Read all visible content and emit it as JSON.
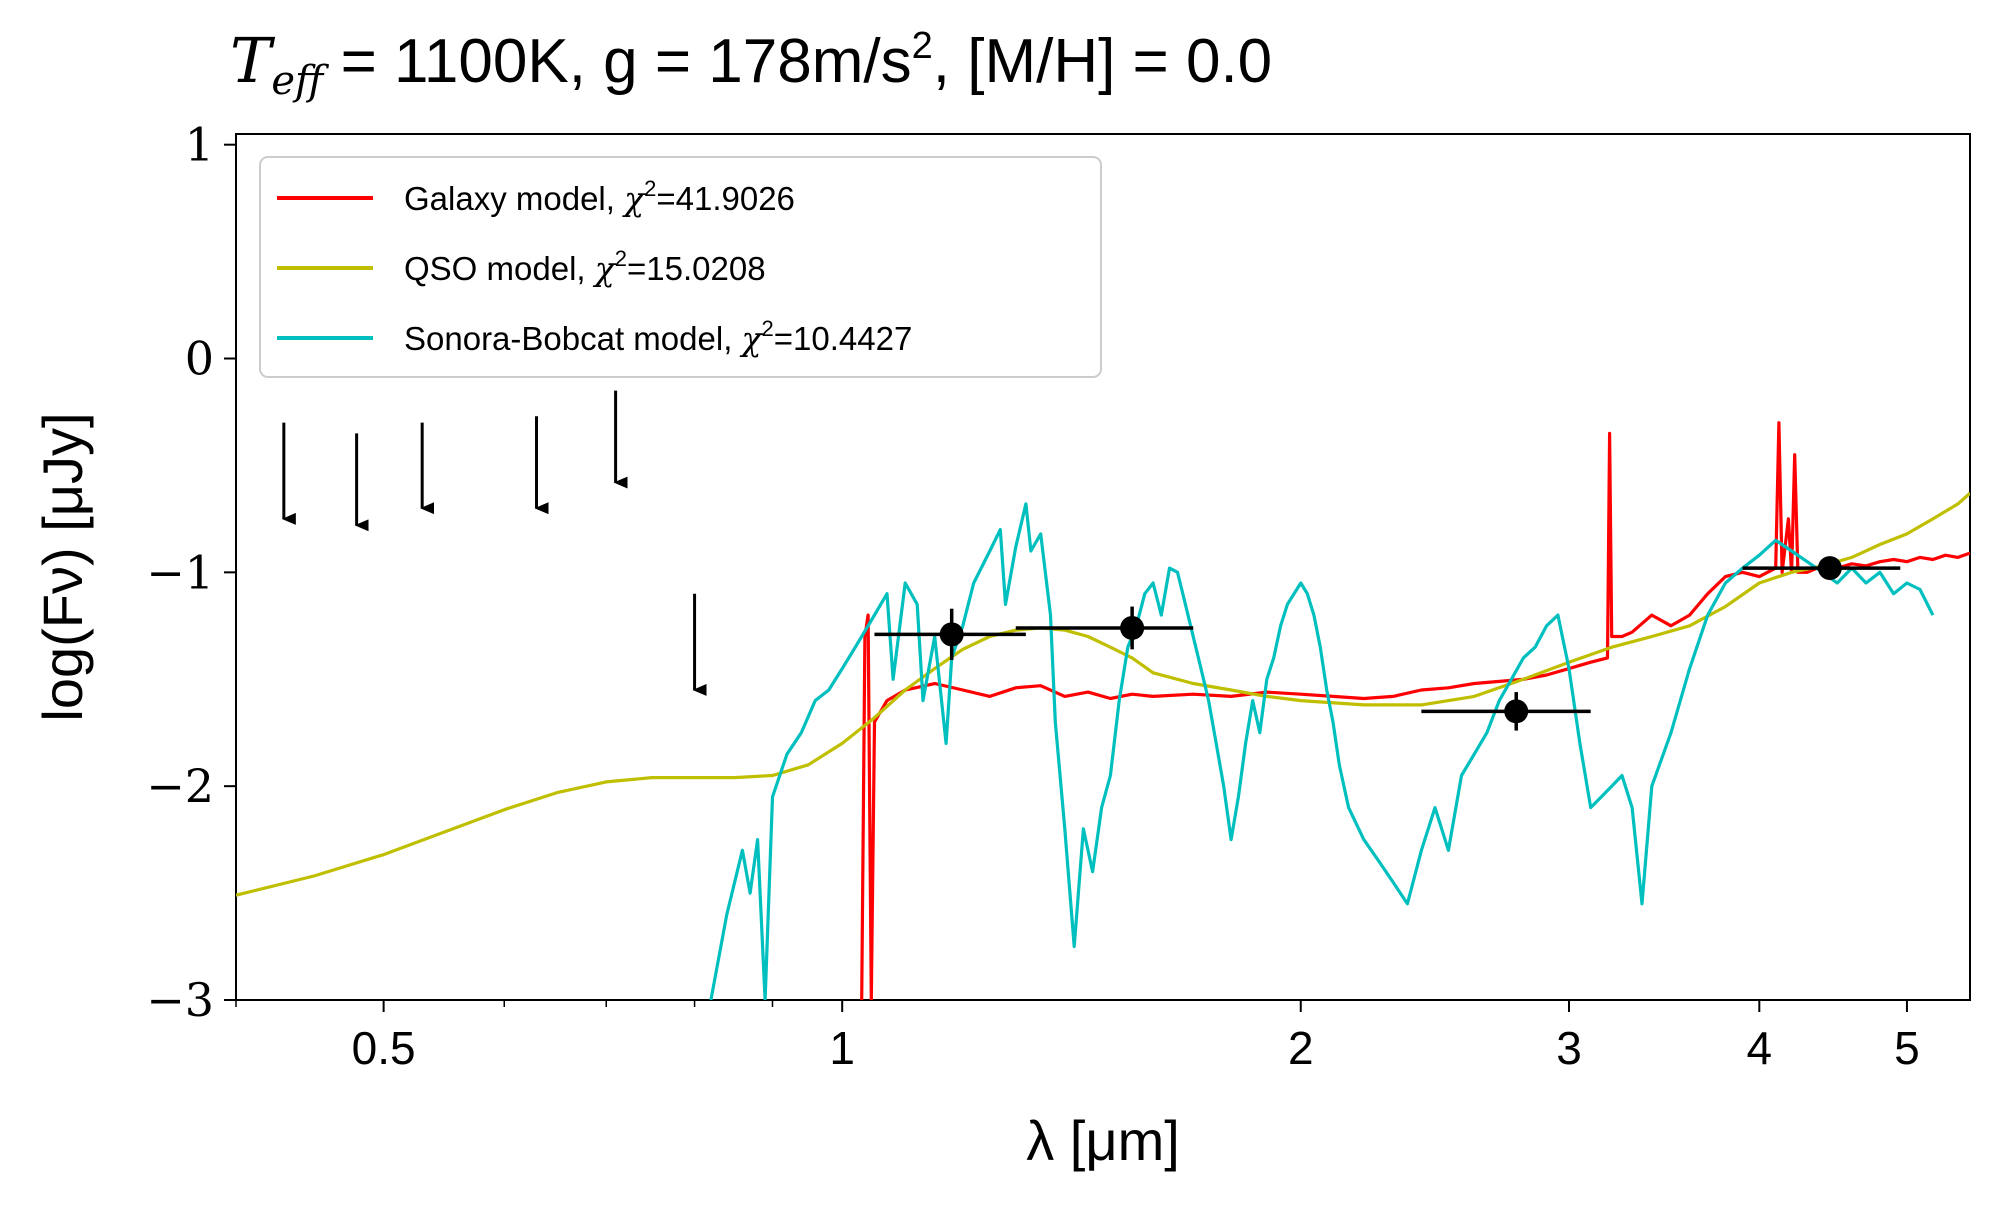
{
  "chart_data": {
    "type": "line",
    "title": "T_eff = 1100K, g = 178m/s², [M/H] = 0.0",
    "title_parts": {
      "teff_symbol": "T",
      "teff_sub": "eff",
      "rest": " = 1100K, g = 178m/s",
      "sup": "2",
      "tail": ", [M/H] = 0.0"
    },
    "xlabel": "λ [μm]",
    "ylabel": "log(Fν) [μJy]",
    "xscale": "log",
    "xlim": [
      0.4,
      5.5
    ],
    "ylim": [
      -3,
      1.05
    ],
    "xticks": [
      {
        "value": 0.5,
        "label": "0.5"
      },
      {
        "value": 1,
        "label": "1"
      },
      {
        "value": 2,
        "label": "2"
      },
      {
        "value": 3,
        "label": "3"
      },
      {
        "value": 4,
        "label": "4"
      },
      {
        "value": 5,
        "label": "5"
      }
    ],
    "xminor": [
      0.4,
      0.6,
      0.7,
      0.8,
      0.9
    ],
    "yticks": [
      {
        "value": 1,
        "label": "1"
      },
      {
        "value": 0,
        "label": "0"
      },
      {
        "value": -1,
        "label": "−1"
      },
      {
        "value": -2,
        "label": "−2"
      },
      {
        "value": -3,
        "label": "−3"
      }
    ],
    "grid": false,
    "legend_position": "top-left",
    "series": [
      {
        "name": "Galaxy model, χ²=41.9026",
        "legend_prefix": "Galaxy model, ",
        "legend_chi": "χ",
        "legend_sup": "2",
        "legend_value": "=41.9026",
        "color": "#ff0000",
        "points": [
          [
            1.03,
            -3.0
          ],
          [
            1.035,
            -1.3
          ],
          [
            1.04,
            -1.2
          ],
          [
            1.045,
            -3.0
          ],
          [
            1.05,
            -1.7
          ],
          [
            1.07,
            -1.6
          ],
          [
            1.1,
            -1.55
          ],
          [
            1.15,
            -1.52
          ],
          [
            1.2,
            -1.55
          ],
          [
            1.25,
            -1.58
          ],
          [
            1.3,
            -1.54
          ],
          [
            1.35,
            -1.53
          ],
          [
            1.4,
            -1.58
          ],
          [
            1.45,
            -1.56
          ],
          [
            1.5,
            -1.59
          ],
          [
            1.55,
            -1.57
          ],
          [
            1.6,
            -1.58
          ],
          [
            1.7,
            -1.57
          ],
          [
            1.8,
            -1.58
          ],
          [
            1.9,
            -1.56
          ],
          [
            2.0,
            -1.57
          ],
          [
            2.1,
            -1.58
          ],
          [
            2.2,
            -1.59
          ],
          [
            2.3,
            -1.58
          ],
          [
            2.4,
            -1.55
          ],
          [
            2.5,
            -1.54
          ],
          [
            2.6,
            -1.52
          ],
          [
            2.7,
            -1.51
          ],
          [
            2.8,
            -1.5
          ],
          [
            2.9,
            -1.48
          ],
          [
            3.0,
            -1.45
          ],
          [
            3.1,
            -1.42
          ],
          [
            3.18,
            -1.4
          ],
          [
            3.19,
            -0.35
          ],
          [
            3.2,
            -1.3
          ],
          [
            3.25,
            -1.3
          ],
          [
            3.3,
            -1.28
          ],
          [
            3.4,
            -1.2
          ],
          [
            3.5,
            -1.25
          ],
          [
            3.6,
            -1.2
          ],
          [
            3.7,
            -1.1
          ],
          [
            3.8,
            -1.02
          ],
          [
            3.9,
            -1.0
          ],
          [
            4.0,
            -1.02
          ],
          [
            4.05,
            -1.0
          ],
          [
            4.1,
            -0.98
          ],
          [
            4.12,
            -0.3
          ],
          [
            4.14,
            -1.0
          ],
          [
            4.18,
            -0.75
          ],
          [
            4.2,
            -1.0
          ],
          [
            4.22,
            -0.45
          ],
          [
            4.24,
            -1.0
          ],
          [
            4.3,
            -1.0
          ],
          [
            4.4,
            -0.97
          ],
          [
            4.5,
            -0.98
          ],
          [
            4.6,
            -0.96
          ],
          [
            4.7,
            -0.97
          ],
          [
            4.8,
            -0.95
          ],
          [
            4.9,
            -0.94
          ],
          [
            5.0,
            -0.95
          ],
          [
            5.1,
            -0.93
          ],
          [
            5.2,
            -0.94
          ],
          [
            5.3,
            -0.92
          ],
          [
            5.4,
            -0.93
          ],
          [
            5.5,
            -0.91
          ]
        ]
      },
      {
        "name": "QSO model, χ²=15.0208",
        "legend_prefix": "QSO model, ",
        "legend_chi": "χ",
        "legend_sup": "2",
        "legend_value": "=15.0208",
        "color": "#bfbf00",
        "points": [
          [
            0.4,
            -2.51
          ],
          [
            0.45,
            -2.42
          ],
          [
            0.5,
            -2.32
          ],
          [
            0.55,
            -2.21
          ],
          [
            0.6,
            -2.11
          ],
          [
            0.65,
            -2.03
          ],
          [
            0.7,
            -1.98
          ],
          [
            0.75,
            -1.96
          ],
          [
            0.8,
            -1.96
          ],
          [
            0.85,
            -1.96
          ],
          [
            0.9,
            -1.95
          ],
          [
            0.95,
            -1.9
          ],
          [
            1.0,
            -1.8
          ],
          [
            1.05,
            -1.68
          ],
          [
            1.1,
            -1.55
          ],
          [
            1.15,
            -1.45
          ],
          [
            1.2,
            -1.36
          ],
          [
            1.25,
            -1.3
          ],
          [
            1.3,
            -1.27
          ],
          [
            1.35,
            -1.26
          ],
          [
            1.4,
            -1.27
          ],
          [
            1.45,
            -1.3
          ],
          [
            1.5,
            -1.35
          ],
          [
            1.55,
            -1.4
          ],
          [
            1.6,
            -1.47
          ],
          [
            1.7,
            -1.52
          ],
          [
            1.8,
            -1.55
          ],
          [
            1.9,
            -1.58
          ],
          [
            2.0,
            -1.6
          ],
          [
            2.2,
            -1.62
          ],
          [
            2.4,
            -1.62
          ],
          [
            2.6,
            -1.58
          ],
          [
            2.8,
            -1.5
          ],
          [
            3.0,
            -1.42
          ],
          [
            3.2,
            -1.35
          ],
          [
            3.4,
            -1.3
          ],
          [
            3.6,
            -1.25
          ],
          [
            3.8,
            -1.16
          ],
          [
            4.0,
            -1.05
          ],
          [
            4.2,
            -1.0
          ],
          [
            4.4,
            -0.97
          ],
          [
            4.6,
            -0.93
          ],
          [
            4.8,
            -0.87
          ],
          [
            5.0,
            -0.82
          ],
          [
            5.2,
            -0.75
          ],
          [
            5.4,
            -0.68
          ],
          [
            5.5,
            -0.63
          ]
        ]
      },
      {
        "name": "Sonora-Bobcat model, χ²=10.4427",
        "legend_prefix": "Sonora-Bobcat model, ",
        "legend_chi": "χ",
        "legend_sup": "2",
        "legend_value": "=10.4427",
        "color": "#00bfbf",
        "points": [
          [
            0.82,
            -3.0
          ],
          [
            0.84,
            -2.6
          ],
          [
            0.86,
            -2.3
          ],
          [
            0.87,
            -2.5
          ],
          [
            0.88,
            -2.25
          ],
          [
            0.89,
            -3.0
          ],
          [
            0.9,
            -2.05
          ],
          [
            0.92,
            -1.85
          ],
          [
            0.94,
            -1.75
          ],
          [
            0.96,
            -1.6
          ],
          [
            0.98,
            -1.55
          ],
          [
            1.0,
            -1.45
          ],
          [
            1.02,
            -1.35
          ],
          [
            1.05,
            -1.2
          ],
          [
            1.07,
            -1.1
          ],
          [
            1.08,
            -1.5
          ],
          [
            1.1,
            -1.05
          ],
          [
            1.12,
            -1.15
          ],
          [
            1.13,
            -1.6
          ],
          [
            1.15,
            -1.3
          ],
          [
            1.17,
            -1.8
          ],
          [
            1.18,
            -1.4
          ],
          [
            1.2,
            -1.25
          ],
          [
            1.22,
            -1.05
          ],
          [
            1.25,
            -0.9
          ],
          [
            1.27,
            -0.8
          ],
          [
            1.28,
            -1.15
          ],
          [
            1.3,
            -0.88
          ],
          [
            1.32,
            -0.68
          ],
          [
            1.33,
            -0.9
          ],
          [
            1.35,
            -0.82
          ],
          [
            1.37,
            -1.2
          ],
          [
            1.38,
            -1.7
          ],
          [
            1.4,
            -2.2
          ],
          [
            1.42,
            -2.75
          ],
          [
            1.44,
            -2.2
          ],
          [
            1.46,
            -2.4
          ],
          [
            1.48,
            -2.1
          ],
          [
            1.5,
            -1.95
          ],
          [
            1.52,
            -1.6
          ],
          [
            1.54,
            -1.35
          ],
          [
            1.56,
            -1.25
          ],
          [
            1.58,
            -1.1
          ],
          [
            1.6,
            -1.05
          ],
          [
            1.62,
            -1.2
          ],
          [
            1.64,
            -0.98
          ],
          [
            1.66,
            -1.0
          ],
          [
            1.68,
            -1.15
          ],
          [
            1.7,
            -1.3
          ],
          [
            1.72,
            -1.45
          ],
          [
            1.74,
            -1.6
          ],
          [
            1.76,
            -1.8
          ],
          [
            1.78,
            -2.0
          ],
          [
            1.8,
            -2.25
          ],
          [
            1.82,
            -2.05
          ],
          [
            1.84,
            -1.8
          ],
          [
            1.86,
            -1.6
          ],
          [
            1.88,
            -1.75
          ],
          [
            1.9,
            -1.5
          ],
          [
            1.92,
            -1.4
          ],
          [
            1.94,
            -1.25
          ],
          [
            1.96,
            -1.15
          ],
          [
            1.98,
            -1.1
          ],
          [
            2.0,
            -1.05
          ],
          [
            2.02,
            -1.1
          ],
          [
            2.04,
            -1.2
          ],
          [
            2.06,
            -1.35
          ],
          [
            2.08,
            -1.55
          ],
          [
            2.1,
            -1.7
          ],
          [
            2.12,
            -1.9
          ],
          [
            2.15,
            -2.1
          ],
          [
            2.2,
            -2.25
          ],
          [
            2.25,
            -2.35
          ],
          [
            2.3,
            -2.45
          ],
          [
            2.35,
            -2.55
          ],
          [
            2.4,
            -2.3
          ],
          [
            2.45,
            -2.1
          ],
          [
            2.5,
            -2.3
          ],
          [
            2.55,
            -1.95
          ],
          [
            2.6,
            -1.85
          ],
          [
            2.65,
            -1.75
          ],
          [
            2.7,
            -1.6
          ],
          [
            2.75,
            -1.5
          ],
          [
            2.8,
            -1.4
          ],
          [
            2.85,
            -1.35
          ],
          [
            2.9,
            -1.25
          ],
          [
            2.95,
            -1.2
          ],
          [
            3.0,
            -1.45
          ],
          [
            3.05,
            -1.8
          ],
          [
            3.1,
            -2.1
          ],
          [
            3.15,
            -2.05
          ],
          [
            3.2,
            -2.0
          ],
          [
            3.25,
            -1.95
          ],
          [
            3.3,
            -2.1
          ],
          [
            3.35,
            -2.55
          ],
          [
            3.4,
            -2.0
          ],
          [
            3.5,
            -1.75
          ],
          [
            3.6,
            -1.45
          ],
          [
            3.7,
            -1.2
          ],
          [
            3.8,
            -1.05
          ],
          [
            3.9,
            -0.98
          ],
          [
            4.0,
            -0.92
          ],
          [
            4.1,
            -0.85
          ],
          [
            4.2,
            -0.9
          ],
          [
            4.3,
            -0.95
          ],
          [
            4.4,
            -1.0
          ],
          [
            4.5,
            -1.05
          ],
          [
            4.6,
            -0.98
          ],
          [
            4.7,
            -1.05
          ],
          [
            4.8,
            -1.0
          ],
          [
            4.9,
            -1.1
          ],
          [
            5.0,
            -1.05
          ],
          [
            5.1,
            -1.08
          ],
          [
            5.2,
            -1.2
          ]
        ]
      }
    ],
    "observations": [
      {
        "x": 1.18,
        "y": -1.29,
        "xlo": 1.05,
        "xhi": 1.32,
        "yerr": 0.12
      },
      {
        "x": 1.55,
        "y": -1.26,
        "xlo": 1.3,
        "xhi": 1.7,
        "yerr": 0.1
      },
      {
        "x": 2.77,
        "y": -1.65,
        "xlo": 2.4,
        "xhi": 3.1,
        "yerr": 0.09
      },
      {
        "x": 4.45,
        "y": -0.98,
        "xlo": 3.9,
        "xhi": 4.95,
        "yerr": 0.04
      }
    ],
    "upper_limits": [
      {
        "x": 0.43,
        "y_top": -0.3,
        "y_bottom": -0.75
      },
      {
        "x": 0.48,
        "y_top": -0.35,
        "y_bottom": -0.78
      },
      {
        "x": 0.53,
        "y_top": -0.3,
        "y_bottom": -0.7
      },
      {
        "x": 0.63,
        "y_top": -0.27,
        "y_bottom": -0.7
      },
      {
        "x": 0.71,
        "y_top": -0.15,
        "y_bottom": -0.58
      },
      {
        "x": 0.8,
        "y_top": -1.1,
        "y_bottom": -1.55
      }
    ]
  }
}
